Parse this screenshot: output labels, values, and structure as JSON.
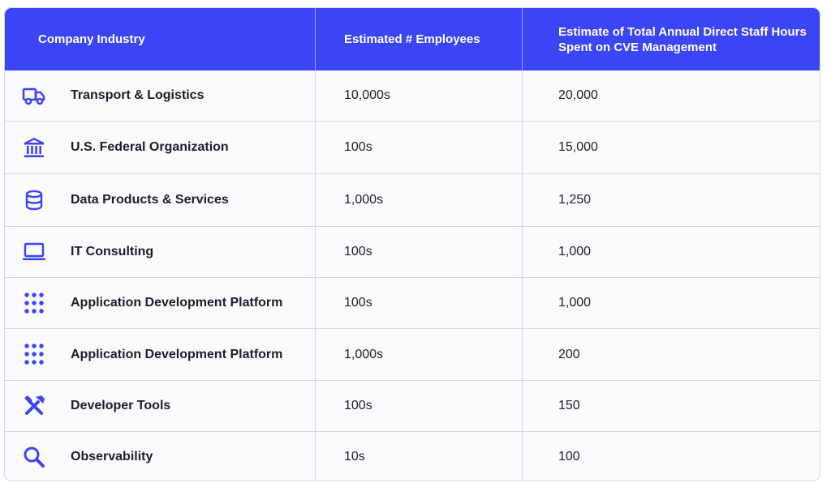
{
  "table": {
    "headers": {
      "industry": "Company Industry",
      "employees": "Estimated # Employees",
      "hours": "Estimate of Total Annual Direct Staff Hours Spent on CVE Management"
    },
    "rows": [
      {
        "icon": "truck-icon",
        "industry": "Transport & Logistics",
        "employees": "10,000s",
        "hours": "20,000"
      },
      {
        "icon": "bank-icon",
        "industry": "U.S. Federal Organization",
        "employees": "100s",
        "hours": "15,000"
      },
      {
        "icon": "database-icon",
        "industry": "Data Products & Services",
        "employees": "1,000s",
        "hours": "1,250"
      },
      {
        "icon": "laptop-icon",
        "industry": "IT Consulting",
        "employees": "100s",
        "hours": "1,000"
      },
      {
        "icon": "grid-dots-icon",
        "industry": "Application Development Platform",
        "employees": "100s",
        "hours": "1,000"
      },
      {
        "icon": "grid-dots-icon",
        "industry": "Application Development Platform",
        "employees": "1,000s",
        "hours": "200"
      },
      {
        "icon": "tools-icon",
        "industry": "Developer Tools",
        "employees": "100s",
        "hours": "150"
      },
      {
        "icon": "magnifier-icon",
        "industry": "Observability",
        "employees": "10s",
        "hours": "100"
      }
    ]
  },
  "colors": {
    "header_bg": "#3b45f5",
    "icon": "#3b45f5",
    "border": "#d3d5f2",
    "text": "#1b1d2e"
  }
}
